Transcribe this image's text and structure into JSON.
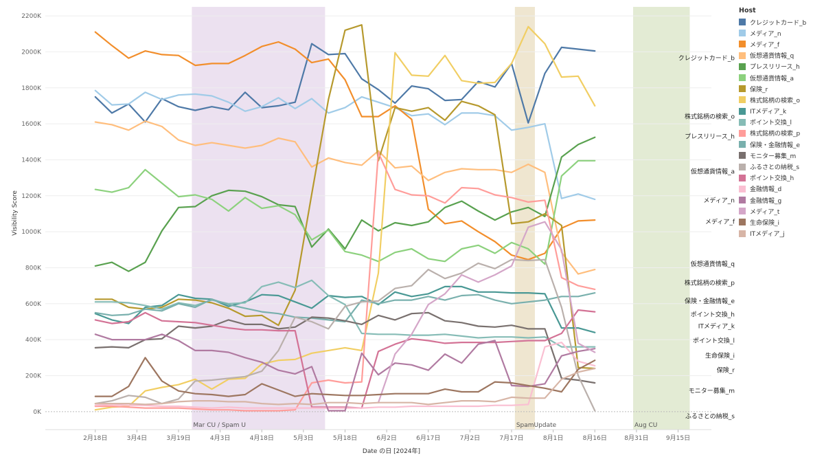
{
  "chart_data": {
    "type": "line",
    "xlabel": "Date の日 [2024年]",
    "ylabel": "Visibility Score",
    "ylim": [
      -100000,
      2250000
    ],
    "x_tick_labels": [
      "2月18日",
      "3月4日",
      "3月19日",
      "4月3日",
      "4月18日",
      "5月3日",
      "5月18日",
      "6月2日",
      "6月17日",
      "7月2日",
      "7月17日",
      "8月1日",
      "8月16日",
      "8月31日",
      "9月15日"
    ],
    "y_ticks": [
      {
        "value": 0,
        "label": "0K"
      },
      {
        "value": 200000,
        "label": "200K"
      },
      {
        "value": 400000,
        "label": "400K"
      },
      {
        "value": 600000,
        "label": "600K"
      },
      {
        "value": 800000,
        "label": "800K"
      },
      {
        "value": 1000000,
        "label": "1000K"
      },
      {
        "value": 1200000,
        "label": "1200K"
      },
      {
        "value": 1400000,
        "label": "1400K"
      },
      {
        "value": 1600000,
        "label": "1600K"
      },
      {
        "value": 1800000,
        "label": "1800K"
      },
      {
        "value": 2000000,
        "label": "2000K"
      },
      {
        "value": 2200000,
        "label": "2200K"
      }
    ],
    "x_range": [
      -3,
      37
    ],
    "bands": [
      {
        "label": "Mar CU / Spam U",
        "start": 5.8,
        "end": 13.8,
        "color": "#ece1f0"
      },
      {
        "label": "SpamUpdate",
        "start": 25.2,
        "end": 26.4,
        "color": "#efe6d0"
      },
      {
        "label": "Aug CU",
        "start": 32.3,
        "end": 35.7,
        "color": "#e3ebd4"
      }
    ],
    "legend_title": "Host",
    "series": [
      {
        "name": "クレジットカード_b",
        "color": "#4e79a7",
        "label": "クレジットカード_b",
        "values": [
          1750000,
          1660000,
          1710000,
          1610000,
          1740000,
          1695000,
          1675000,
          1695000,
          1678000,
          1775000,
          1690000,
          1700000,
          1720000,
          2045000,
          1985000,
          1990000,
          1850000,
          1790000,
          1715000,
          1810000,
          1795000,
          1730000,
          1735000,
          1835000,
          1805000,
          1935000,
          1605000,
          1880000,
          2025000,
          2015000,
          2005000
        ]
      },
      {
        "name": "メディア_n",
        "color": "#a0cbe8",
        "label": "メディア_n",
        "values": [
          1785000,
          1705000,
          1710000,
          1775000,
          1735000,
          1760000,
          1765000,
          1755000,
          1720000,
          1670000,
          1695000,
          1745000,
          1685000,
          1740000,
          1660000,
          1690000,
          1750000,
          1720000,
          1690000,
          1645000,
          1655000,
          1595000,
          1660000,
          1660000,
          1645000,
          1565000,
          1580000,
          1600000,
          1185000,
          1210000,
          1180000
        ]
      },
      {
        "name": "メディア_f",
        "color": "#f28e2b",
        "label": "メディア_f",
        "values": [
          2110000,
          2035000,
          1965000,
          2005000,
          1985000,
          1980000,
          1925000,
          1935000,
          1935000,
          1980000,
          2030000,
          2055000,
          2015000,
          1940000,
          1960000,
          1845000,
          1640000,
          1640000,
          1700000,
          1625000,
          1125000,
          1045000,
          1060000,
          1000000,
          945000,
          870000,
          845000,
          880000,
          1020000,
          1060000,
          1065000
        ]
      },
      {
        "name": "仮想通貨情報_q",
        "color": "#ffbe7d",
        "label": "仮想通貨情報_q",
        "values": [
          1610000,
          1595000,
          1565000,
          1615000,
          1585000,
          1510000,
          1480000,
          1495000,
          1480000,
          1465000,
          1480000,
          1520000,
          1500000,
          1360000,
          1410000,
          1385000,
          1370000,
          1450000,
          1355000,
          1365000,
          1285000,
          1330000,
          1350000,
          1345000,
          1345000,
          1330000,
          1375000,
          1330000,
          885000,
          765000,
          790000
        ]
      },
      {
        "name": "プレスリリース_h",
        "color": "#59a14f",
        "label": "プレスリリース_h",
        "values": [
          810000,
          830000,
          780000,
          830000,
          1005000,
          1135000,
          1140000,
          1200000,
          1230000,
          1225000,
          1195000,
          1150000,
          1140000,
          915000,
          1015000,
          905000,
          1065000,
          1005000,
          1050000,
          1035000,
          1055000,
          1135000,
          1170000,
          1115000,
          1065000,
          1110000,
          1135000,
          1085000,
          1415000,
          1485000,
          1525000
        ]
      },
      {
        "name": "仮想通貨情報_a",
        "color": "#8cd17d",
        "label": "仮想通貨情報_a",
        "values": [
          1235000,
          1220000,
          1245000,
          1345000,
          1270000,
          1195000,
          1205000,
          1180000,
          1115000,
          1190000,
          1130000,
          1145000,
          1095000,
          955000,
          1010000,
          890000,
          870000,
          835000,
          885000,
          905000,
          850000,
          835000,
          905000,
          925000,
          880000,
          940000,
          905000,
          820000,
          1310000,
          1395000,
          1395000
        ]
      },
      {
        "name": "保険_r",
        "color": "#b6992d",
        "label": "保険_r",
        "values": [
          625000,
          625000,
          580000,
          570000,
          580000,
          625000,
          620000,
          605000,
          575000,
          530000,
          535000,
          480000,
          675000,
          1210000,
          1735000,
          2120000,
          2150000,
          1395000,
          1690000,
          1670000,
          1690000,
          1620000,
          1725000,
          1700000,
          1650000,
          1045000,
          1055000,
          1100000,
          1035000,
          245000,
          240000
        ]
      },
      {
        "name": "株式銘柄の検索_o",
        "color": "#f1ce63",
        "label": "株式銘柄の検索_o",
        "values": [
          10000,
          25000,
          30000,
          115000,
          135000,
          150000,
          180000,
          125000,
          180000,
          185000,
          265000,
          285000,
          290000,
          325000,
          340000,
          355000,
          340000,
          770000,
          1995000,
          1870000,
          1865000,
          1980000,
          1840000,
          1825000,
          1830000,
          1935000,
          2140000,
          2045000,
          1860000,
          1865000,
          1700000
        ]
      },
      {
        "name": "ITメディア_k",
        "color": "#499894",
        "label": "ITメディア_k",
        "values": [
          545000,
          510000,
          490000,
          580000,
          590000,
          650000,
          630000,
          625000,
          585000,
          610000,
          650000,
          645000,
          610000,
          575000,
          645000,
          635000,
          640000,
          595000,
          665000,
          640000,
          655000,
          695000,
          695000,
          665000,
          665000,
          660000,
          660000,
          655000,
          465000,
          465000,
          440000
        ]
      },
      {
        "name": "ポイント交換_l",
        "color": "#86bcb6",
        "label": "ポイント交換_l",
        "values": [
          610000,
          610000,
          605000,
          590000,
          570000,
          605000,
          590000,
          620000,
          600000,
          605000,
          695000,
          720000,
          690000,
          730000,
          645000,
          595000,
          435000,
          430000,
          430000,
          425000,
          425000,
          430000,
          420000,
          410000,
          415000,
          415000,
          410000,
          415000,
          360000,
          360000,
          360000
        ]
      },
      {
        "name": "株式銘柄の検索_p",
        "color": "#ff9d9a",
        "label": "株式銘柄の検索_p",
        "values": [
          30000,
          30000,
          25000,
          20000,
          20000,
          20000,
          15000,
          10000,
          10000,
          5000,
          5000,
          5000,
          10000,
          160000,
          175000,
          160000,
          165000,
          1440000,
          1235000,
          1205000,
          1200000,
          1160000,
          1245000,
          1240000,
          1205000,
          1190000,
          1165000,
          1175000,
          745000,
          700000,
          680000
        ]
      },
      {
        "name": "保険・金融情報_e",
        "color": "#79b0ad",
        "label": "保険・金融情報_e",
        "values": [
          550000,
          535000,
          540000,
          570000,
          560000,
          600000,
          580000,
          625000,
          595000,
          575000,
          555000,
          545000,
          525000,
          520000,
          510000,
          500000,
          620000,
          600000,
          620000,
          620000,
          640000,
          620000,
          645000,
          650000,
          620000,
          600000,
          610000,
          620000,
          640000,
          640000,
          660000
        ]
      },
      {
        "name": "モニター募集_m",
        "color": "#79706e",
        "label": "モニター募集_m",
        "values": [
          355000,
          360000,
          355000,
          400000,
          405000,
          475000,
          465000,
          475000,
          510000,
          485000,
          485000,
          460000,
          470000,
          525000,
          520000,
          505000,
          485000,
          535000,
          510000,
          545000,
          550000,
          505000,
          495000,
          475000,
          470000,
          480000,
          460000,
          460000,
          185000,
          175000,
          160000
        ]
      },
      {
        "name": "ふるさとの納税_s",
        "color": "#bab0ac",
        "label": "ふるさとの納税_s",
        "values": [
          45000,
          60000,
          90000,
          80000,
          45000,
          70000,
          170000,
          175000,
          185000,
          195000,
          225000,
          340000,
          525000,
          500000,
          460000,
          585000,
          610000,
          615000,
          685000,
          700000,
          790000,
          740000,
          770000,
          825000,
          795000,
          845000,
          840000,
          845000,
          580000,
          200000,
          5000
        ]
      },
      {
        "name": "ポイント交換_h",
        "color": "#d37295",
        "label": "ポイント交換_h",
        "values": [
          510000,
          490000,
          500000,
          550000,
          505000,
          500000,
          495000,
          480000,
          465000,
          455000,
          455000,
          450000,
          450000,
          25000,
          25000,
          25000,
          20000,
          335000,
          375000,
          405000,
          395000,
          380000,
          385000,
          385000,
          385000,
          390000,
          395000,
          395000,
          435000,
          565000,
          555000
        ]
      },
      {
        "name": "金融情報_d",
        "color": "#fabfd2",
        "label": "金融情報_d",
        "values": [
          35000,
          40000,
          35000,
          35000,
          30000,
          30000,
          25000,
          20000,
          25000,
          20000,
          20000,
          20000,
          20000,
          20000,
          20000,
          20000,
          20000,
          25000,
          25000,
          30000,
          30000,
          30000,
          30000,
          30000,
          35000,
          35000,
          40000,
          360000,
          385000,
          280000,
          255000
        ]
      },
      {
        "name": "金融情報_g",
        "color": "#b07aa1",
        "label": "金融情報_g",
        "values": [
          430000,
          400000,
          400000,
          400000,
          430000,
          395000,
          340000,
          340000,
          330000,
          300000,
          275000,
          230000,
          210000,
          250000,
          5000,
          5000,
          325000,
          205000,
          270000,
          260000,
          230000,
          320000,
          270000,
          375000,
          395000,
          145000,
          140000,
          155000,
          310000,
          335000,
          350000
        ]
      },
      {
        "name": "メディア_t",
        "color": "#d4a6c8",
        "label": "メディア_t",
        "values": [
          null,
          null,
          null,
          null,
          null,
          null,
          null,
          null,
          null,
          null,
          null,
          null,
          null,
          null,
          null,
          null,
          null,
          50000,
          320000,
          430000,
          595000,
          655000,
          760000,
          720000,
          760000,
          810000,
          1025000,
          1055000,
          900000,
          380000,
          330000
        ]
      },
      {
        "name": "生命保険_i",
        "color": "#9d7660",
        "label": "生命保険_i",
        "values": [
          85000,
          85000,
          140000,
          300000,
          170000,
          115000,
          100000,
          95000,
          85000,
          95000,
          155000,
          120000,
          85000,
          100000,
          95000,
          90000,
          90000,
          95000,
          100000,
          100000,
          100000,
          125000,
          110000,
          110000,
          165000,
          160000,
          145000,
          130000,
          110000,
          235000,
          285000
        ]
      },
      {
        "name": "ITメディア_j",
        "color": "#d7b5a6",
        "label": "ITメディア_j",
        "values": [
          45000,
          45000,
          45000,
          40000,
          45000,
          55000,
          60000,
          60000,
          55000,
          55000,
          45000,
          40000,
          45000,
          40000,
          50000,
          50000,
          45000,
          50000,
          50000,
          50000,
          40000,
          50000,
          60000,
          60000,
          55000,
          80000,
          75000,
          75000,
          180000,
          220000,
          240000
        ]
      }
    ],
    "end_labels": [
      {
        "text": "クレジットカード_b",
        "value": 1965000
      },
      {
        "text": "株式銘柄の検索_o",
        "value": 1640000
      },
      {
        "text": "プレスリリース_h",
        "value": 1530000
      },
      {
        "text": "仮想通貨情報_a",
        "value": 1335000
      },
      {
        "text": "メディア_n",
        "value": 1175000
      },
      {
        "text": "メディア_f",
        "value": 1055000
      },
      {
        "text": "仮想通貨情報_q",
        "value": 820000
      },
      {
        "text": "株式銘柄の検索_p",
        "value": 715000
      },
      {
        "text": "保険・金融情報_e",
        "value": 615000
      },
      {
        "text": "ポイント交換_h",
        "value": 540000
      },
      {
        "text": "ITメディア_k",
        "value": 475000
      },
      {
        "text": "ポイント交換_l",
        "value": 395000
      },
      {
        "text": "生命保険_i",
        "value": 310000
      },
      {
        "text": "保険_r",
        "value": 230000
      },
      {
        "text": "モニター募集_m",
        "value": 115000
      },
      {
        "text": "ふるさとの納税_s",
        "value": -25000
      }
    ]
  }
}
